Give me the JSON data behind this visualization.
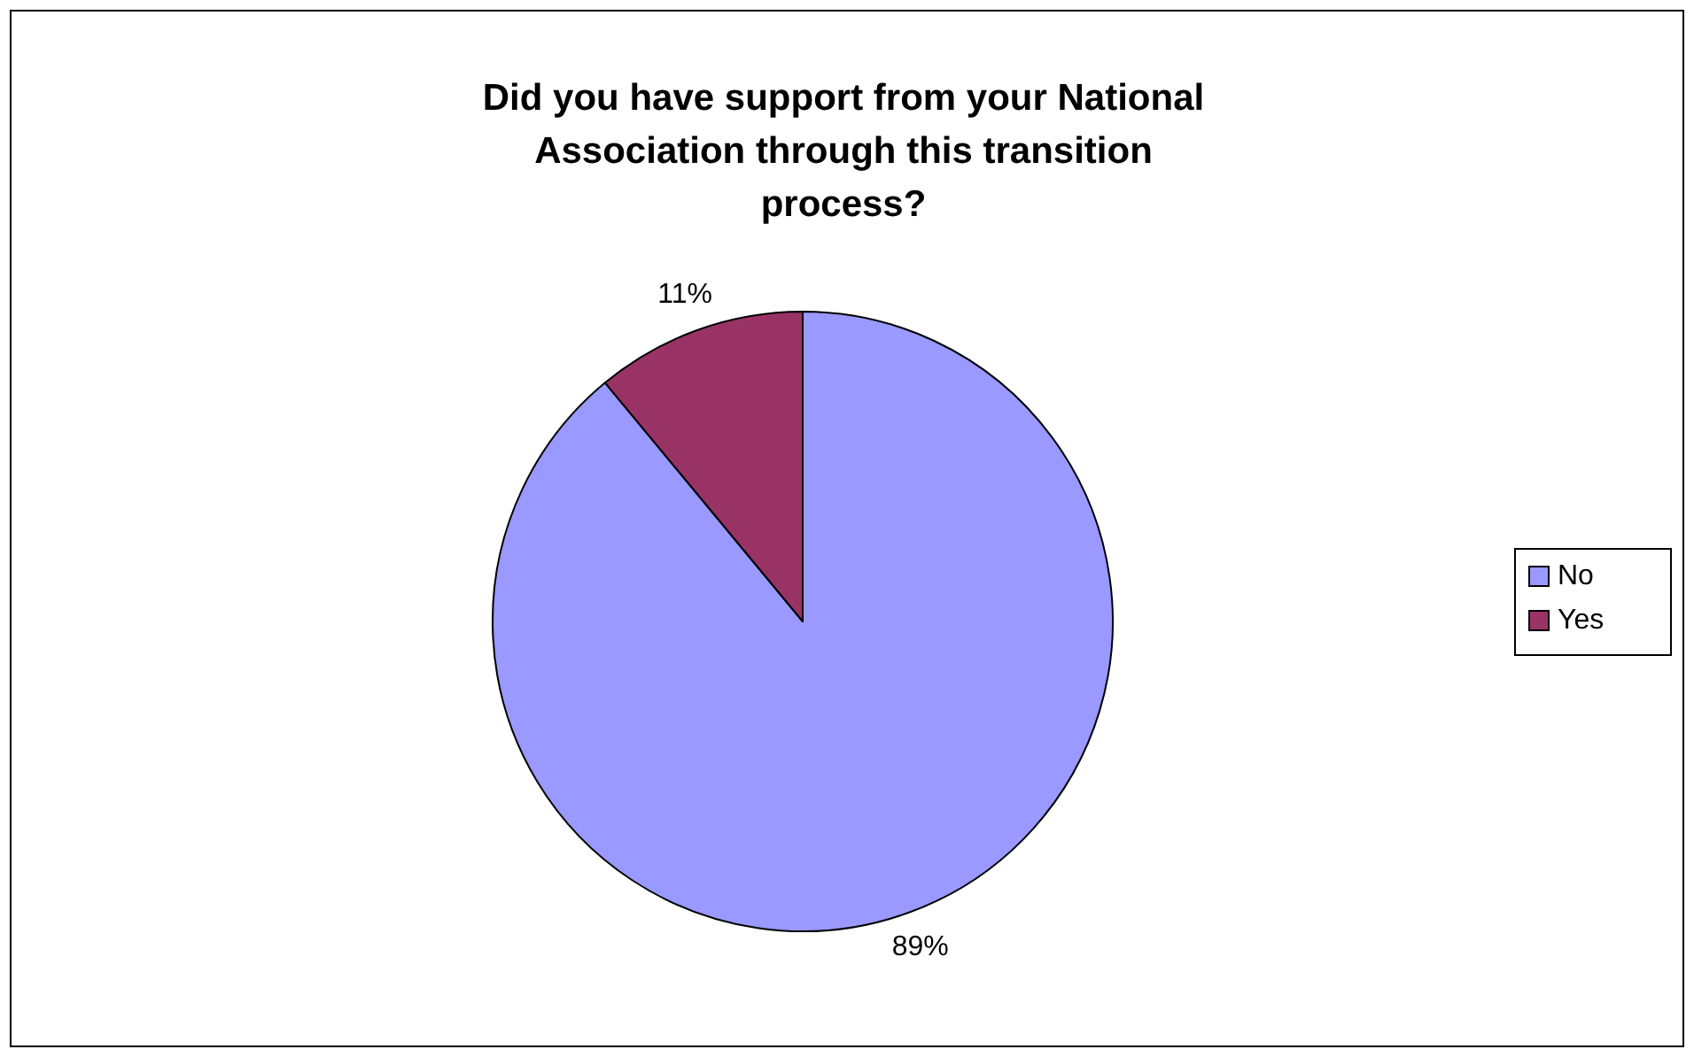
{
  "chart_data": {
    "type": "pie",
    "title": "Did you have support from your National Association through this transition process?",
    "categories": [
      "No",
      "Yes"
    ],
    "values": [
      89,
      11
    ],
    "colors": [
      "#9999ff",
      "#993366"
    ],
    "value_labels": [
      "89%",
      "11%"
    ],
    "legend": "right"
  }
}
